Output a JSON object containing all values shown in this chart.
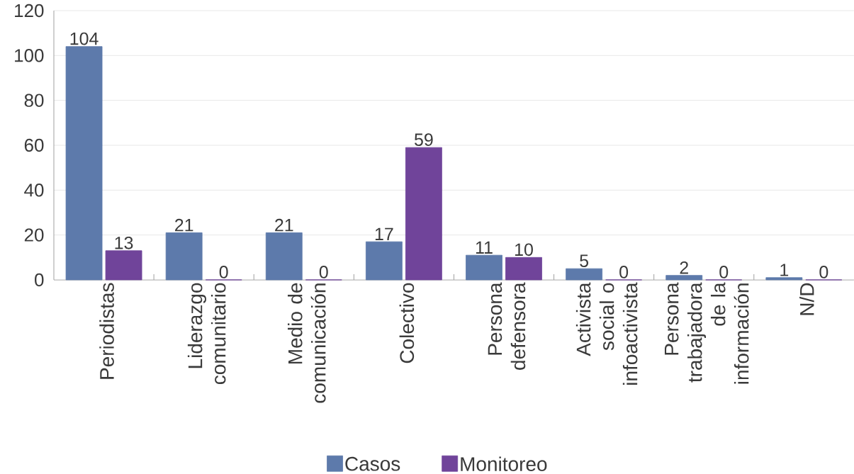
{
  "chart_data": {
    "type": "bar",
    "categories": [
      "Periodistas",
      "Liderazgo comunitario",
      "Medio de comunicación",
      "Colectivo",
      "Persona defensora",
      "Activista social o infoactivista",
      "Persona trabajadora de la información",
      "N/D"
    ],
    "series": [
      {
        "name": "Casos",
        "color": "#5d7aab",
        "values": [
          104,
          21,
          21,
          17,
          11,
          5,
          2,
          1
        ]
      },
      {
        "name": "Monitoreo",
        "color": "#70449a",
        "values": [
          13,
          0,
          0,
          59,
          10,
          0,
          0,
          0
        ]
      }
    ],
    "ylim": [
      0,
      120
    ],
    "yticks": [
      0,
      20,
      40,
      60,
      80,
      100,
      120
    ],
    "grid": "y",
    "legend": "bottom",
    "data_labels": true
  }
}
